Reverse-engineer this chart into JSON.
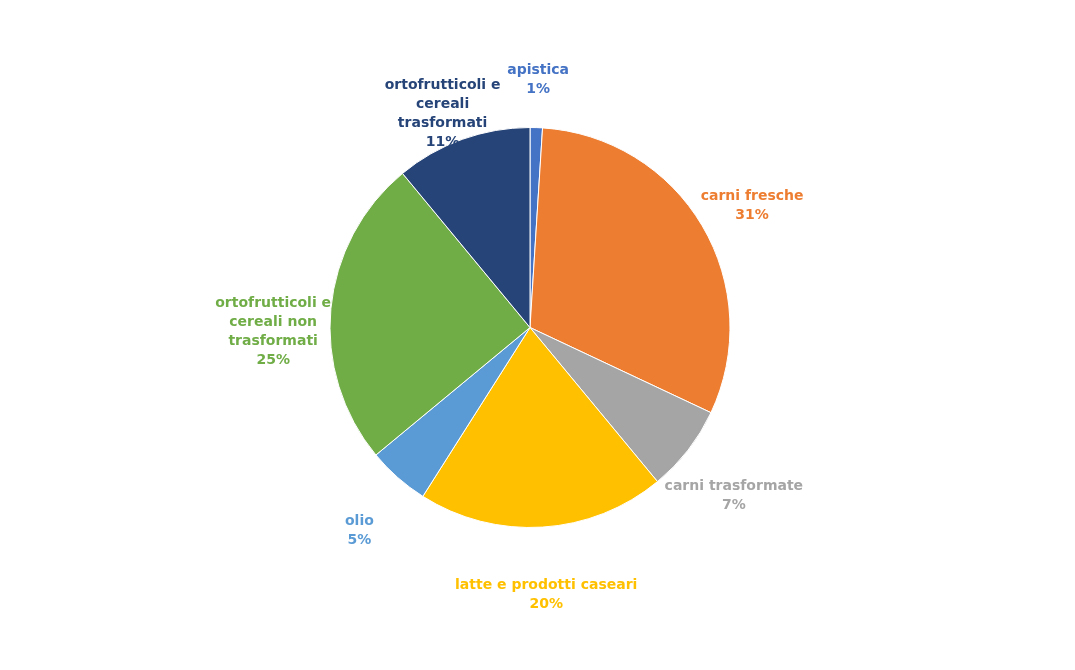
{
  "chart_data": {
    "type": "pie",
    "categories": [
      "apistica",
      "carni fresche",
      "carni trasformate",
      "latte e prodotti caseari",
      "olio",
      "ortofrutticoli e cereali non trasformati",
      "ortofrutticoli e cereali trasformati"
    ],
    "values": [
      1,
      31,
      7,
      20,
      5,
      25,
      11
    ],
    "value_labels": [
      "1%",
      "31%",
      "7%",
      "20%",
      "5%",
      "25%",
      "11%"
    ],
    "colors": [
      "#4472c4",
      "#ed7d31",
      "#a5a5a5",
      "#ffc000",
      "#5b9bd5",
      "#70ad47",
      "#264478"
    ]
  }
}
